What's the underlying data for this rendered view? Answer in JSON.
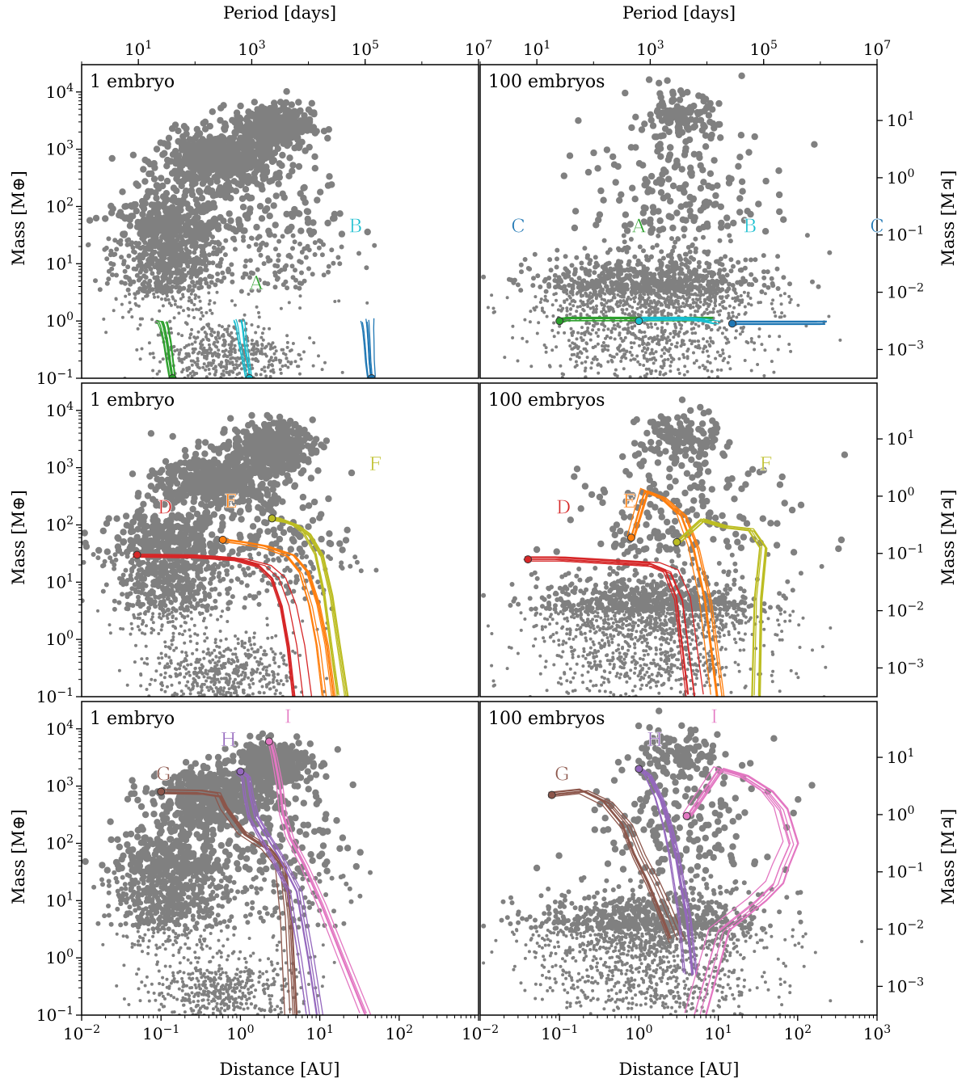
{
  "figure": {
    "top_axis_label": "Period [days]",
    "bottom_axis_label": "Distance [AU]",
    "left_axis_label": "Mass [M⊕]",
    "right_axis_label": "Mass [M♃]"
  },
  "chart_data": {
    "type": "scatter",
    "grid": false,
    "x_scale": "log",
    "y_scale": "log",
    "x_tick_labels": [
      "10⁻²",
      "10⁻¹",
      "10⁰",
      "10¹",
      "10²",
      "10³"
    ],
    "y_tick_labels": [
      "10⁻¹",
      "10⁰",
      "10¹",
      "10²",
      "10³",
      "10⁴"
    ],
    "period_tick_labels": [
      "10¹",
      "10³",
      "10⁵",
      "10⁷"
    ],
    "jupiter_tick_labels": [
      "10⁻³",
      "10⁻²",
      "10⁻¹",
      "10⁰",
      "10¹"
    ],
    "xlim_left_panels": [
      0.01,
      1000
    ],
    "xlim_right_panels": [
      0.01,
      1000
    ],
    "ylim": [
      0.1,
      30000
    ],
    "period_xlim": [
      1,
      10000000
    ],
    "background_population_color": "#808080",
    "panels": [
      {
        "title": "1 embryo",
        "tracks": [
          {
            "label": "A",
            "color": "#2ca02c",
            "x": [
              0.14,
              0.13,
              0.12,
              0.11,
              0.105,
              0.1
            ],
            "y": [
              0.1,
              0.2,
              0.45,
              0.8,
              0.98,
              1.0
            ]
          },
          {
            "label": "B",
            "color": "#17becf",
            "x": [
              1.3,
              1.2,
              1.1,
              1.05,
              1.02,
              1.0
            ],
            "y": [
              0.1,
              0.2,
              0.4,
              0.7,
              0.9,
              1.0
            ]
          },
          {
            "label": "C",
            "color": "#1f77b4",
            "x": [
              45,
              43,
              42,
              41,
              40.5,
              40
            ],
            "y": [
              0.1,
              0.2,
              0.4,
              0.7,
              0.9,
              1.05
            ]
          }
        ]
      },
      {
        "title": "100 embryos",
        "tracks": [
          {
            "label": "A",
            "color": "#2ca02c",
            "x": [
              0.1,
              0.12,
              0.3,
              1.0,
              3.0,
              8.0
            ],
            "y": [
              1.0,
              1.1,
              1.1,
              1.1,
              1.1,
              1.1
            ]
          },
          {
            "label": "B",
            "color": "#17becf",
            "x": [
              1.0,
              1.2,
              2.0,
              4.0,
              6.0,
              9.0
            ],
            "y": [
              1.0,
              1.05,
              1.05,
              1.05,
              1.0,
              0.9
            ]
          },
          {
            "label": "C",
            "color": "#1f77b4",
            "x": [
              15,
              25,
              40,
              60,
              100,
              200
            ],
            "y": [
              0.9,
              0.9,
              0.9,
              0.9,
              0.9,
              0.9
            ]
          }
        ]
      },
      {
        "title": "1 embryo",
        "tracks": [
          {
            "label": "D",
            "color": "#d62728",
            "x": [
              0.05,
              0.3,
              1.0,
              2.0,
              3.0,
              4.0,
              5.0,
              6.0
            ],
            "y": [
              30,
              29,
              26,
              20,
              12,
              4,
              0.8,
              0.1
            ]
          },
          {
            "label": "E",
            "color": "#ff7f0e",
            "x": [
              0.6,
              1.0,
              2.0,
              4.0,
              6.0,
              8.0,
              10.0,
              12.0
            ],
            "y": [
              55,
              50,
              42,
              30,
              15,
              4,
              0.8,
              0.1
            ]
          },
          {
            "label": "F",
            "color": "#bcbd22",
            "x": [
              2.5,
              3.5,
              5.0,
              7.0,
              10.0,
              13.0,
              16.0,
              20.0
            ],
            "y": [
              130,
              120,
              100,
              70,
              30,
              6,
              0.8,
              0.1
            ]
          }
        ]
      },
      {
        "title": "100 embryos",
        "tracks": [
          {
            "label": "D",
            "color": "#d62728",
            "x": [
              0.04,
              0.1,
              0.5,
              1.5,
              2.5,
              3.5,
              5.0
            ],
            "y": [
              25,
              25,
              22,
              20,
              15,
              5,
              0.1
            ]
          },
          {
            "label": "E",
            "color": "#ff7f0e",
            "x": [
              0.8,
              1.2,
              2.0,
              3.5,
              5.0,
              7.0,
              10.0
            ],
            "y": [
              60,
              400,
              300,
              150,
              40,
              5,
              0.1
            ]
          },
          {
            "label": "F",
            "color": "#bcbd22",
            "x": [
              3.0,
              6.0,
              12.0,
              25.0,
              35.0,
              30.0,
              28.0
            ],
            "y": [
              50,
              120,
              90,
              80,
              40,
              5,
              0.1
            ]
          }
        ]
      },
      {
        "title": "1 embryo",
        "tracks": [
          {
            "label": "G",
            "color": "#8c564b",
            "x": [
              0.1,
              0.3,
              0.5,
              0.6,
              1.0,
              2.0,
              3.0,
              3.5,
              4.0
            ],
            "y": [
              800,
              780,
              700,
              400,
              150,
              80,
              40,
              5,
              0.1
            ]
          },
          {
            "label": "H",
            "color": "#9467bd",
            "x": [
              1.0,
              1.2,
              1.3,
              1.5,
              2.0,
              3.0,
              5.0,
              7.0,
              9.0
            ],
            "y": [
              1800,
              1500,
              700,
              300,
              150,
              60,
              15,
              1,
              0.1
            ]
          },
          {
            "label": "I",
            "color": "#e377c2",
            "x": [
              2.3,
              2.6,
              3.0,
              3.3,
              4.0,
              6.0,
              10.0,
              18.0,
              35.0
            ],
            "y": [
              6000,
              3000,
              1000,
              300,
              120,
              40,
              8,
              1,
              0.1
            ]
          }
        ]
      },
      {
        "title": "100 embryos",
        "tracks": [
          {
            "label": "G",
            "color": "#8c564b",
            "x": [
              0.08,
              0.2,
              0.4,
              0.7,
              1.0,
              1.5,
              2.0,
              3.0
            ],
            "y": [
              700,
              800,
              500,
              200,
              60,
              20,
              8,
              2
            ]
          },
          {
            "label": "H",
            "color": "#9467bd",
            "x": [
              1.0,
              1.3,
              1.8,
              2.3,
              2.8,
              3.2,
              3.8,
              4.5
            ],
            "y": [
              2000,
              1500,
              600,
              200,
              60,
              20,
              5,
              0.5
            ]
          },
          {
            "label": "I",
            "color": "#e377c2",
            "x": [
              4.0,
              10.0,
              20.0,
              40.0,
              60.0,
              80.0,
              60.0,
              50.0,
              30.0,
              10.0,
              5.0
            ],
            "y": [
              300,
              2000,
              1500,
              800,
              400,
              100,
              40,
              20,
              10,
              3,
              0.1
            ]
          }
        ]
      }
    ]
  }
}
